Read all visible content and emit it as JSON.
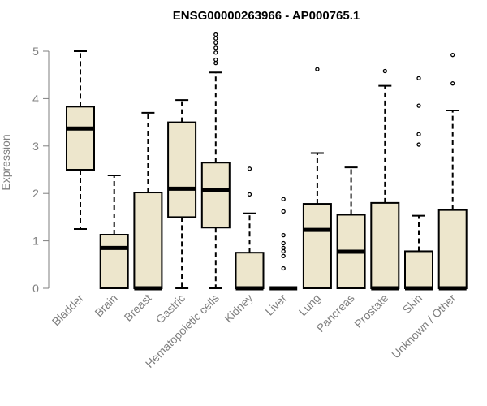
{
  "chart_data": {
    "type": "boxplot",
    "title": "ENSG00000263966 - AP000765.1",
    "xlabel": "",
    "ylabel": "Expression",
    "ylim": [
      0,
      5
    ],
    "yticks": [
      "0",
      "1",
      "2",
      "3",
      "4",
      "5"
    ],
    "box_fill": "#ede6cc",
    "categories": [
      "Bladder",
      "Brain",
      "Breast",
      "Gastric",
      "Hematopoietic cells",
      "Kidney",
      "Liver",
      "Lung",
      "Pancreas",
      "Prostate",
      "Skin",
      "Unknown / Other"
    ],
    "boxes": [
      {
        "min": 1.25,
        "q1": 2.5,
        "median": 3.37,
        "q3": 3.83,
        "max": 5.0,
        "outliers": []
      },
      {
        "min": 0.0,
        "q1": 0.0,
        "median": 0.85,
        "q3": 1.13,
        "max": 2.38,
        "outliers": []
      },
      {
        "min": 0.0,
        "q1": 0.0,
        "median": 0.0,
        "q3": 2.02,
        "max": 3.7,
        "outliers": []
      },
      {
        "min": 0.0,
        "q1": 1.5,
        "median": 2.1,
        "q3": 3.5,
        "max": 3.97,
        "outliers": []
      },
      {
        "min": 0.0,
        "q1": 1.28,
        "median": 2.07,
        "q3": 2.65,
        "max": 4.55,
        "outliers": [
          4.75,
          4.82,
          4.97,
          5.07,
          5.18,
          5.27,
          5.35
        ]
      },
      {
        "min": 0.0,
        "q1": 0.0,
        "median": 0.0,
        "q3": 0.75,
        "max": 1.58,
        "outliers": [
          1.98,
          2.52
        ]
      },
      {
        "min": 0.0,
        "q1": 0.0,
        "median": 0.0,
        "q3": 0.0,
        "max": 0.0,
        "outliers": [
          0.42,
          0.68,
          0.78,
          0.85,
          0.95,
          1.12,
          1.62,
          1.88
        ]
      },
      {
        "min": 0.0,
        "q1": 0.0,
        "median": 1.23,
        "q3": 1.78,
        "max": 2.85,
        "outliers": [
          4.62
        ]
      },
      {
        "min": 0.0,
        "q1": 0.0,
        "median": 0.77,
        "q3": 1.55,
        "max": 2.55,
        "outliers": []
      },
      {
        "min": 0.0,
        "q1": 0.0,
        "median": 0.0,
        "q3": 1.8,
        "max": 4.27,
        "outliers": [
          4.58
        ]
      },
      {
        "min": 0.0,
        "q1": 0.0,
        "median": 0.0,
        "q3": 0.78,
        "max": 1.53,
        "outliers": [
          3.03,
          3.25,
          3.85,
          4.43
        ]
      },
      {
        "min": 0.0,
        "q1": 0.0,
        "median": 0.0,
        "q3": 1.65,
        "max": 3.75,
        "outliers": [
          4.32,
          4.92
        ]
      }
    ]
  }
}
